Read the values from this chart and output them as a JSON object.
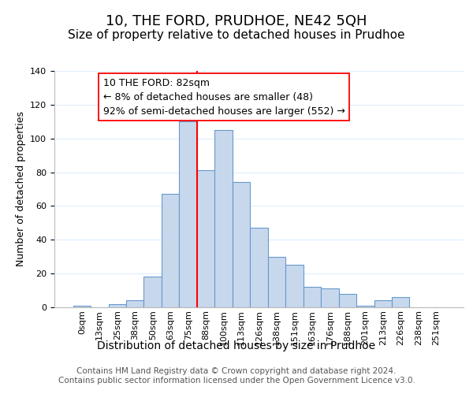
{
  "title": "10, THE FORD, PRUDHOE, NE42 5QH",
  "subtitle": "Size of property relative to detached houses in Prudhoe",
  "xlabel": "Distribution of detached houses by size in Prudhoe",
  "ylabel": "Number of detached properties",
  "bar_labels": [
    "0sqm",
    "13sqm",
    "25sqm",
    "38sqm",
    "50sqm",
    "63sqm",
    "75sqm",
    "88sqm",
    "100sqm",
    "113sqm",
    "126sqm",
    "138sqm",
    "151sqm",
    "163sqm",
    "176sqm",
    "188sqm",
    "201sqm",
    "213sqm",
    "226sqm",
    "238sqm",
    "251sqm"
  ],
  "bar_values": [
    1,
    0,
    2,
    4,
    18,
    67,
    110,
    81,
    105,
    74,
    47,
    30,
    25,
    12,
    11,
    8,
    1,
    4,
    6,
    0,
    0
  ],
  "bar_color": "#c8d8ec",
  "bar_edge_color": "#6699cc",
  "vline_index": 7,
  "vline_color": "red",
  "annotation_text": "10 THE FORD: 82sqm\n← 8% of detached houses are smaller (48)\n92% of semi-detached houses are larger (552) →",
  "annotation_box_color": "white",
  "annotation_box_edge": "red",
  "ylim": [
    0,
    140
  ],
  "yticks": [
    0,
    20,
    40,
    60,
    80,
    100,
    120,
    140
  ],
  "footer_text": "Contains HM Land Registry data © Crown copyright and database right 2024.\nContains public sector information licensed under the Open Government Licence v3.0.",
  "title_fontsize": 13,
  "subtitle_fontsize": 11,
  "xlabel_fontsize": 10,
  "ylabel_fontsize": 9,
  "tick_fontsize": 8,
  "annotation_fontsize": 9,
  "footer_fontsize": 7.5,
  "grid_color": "#ddeeff"
}
